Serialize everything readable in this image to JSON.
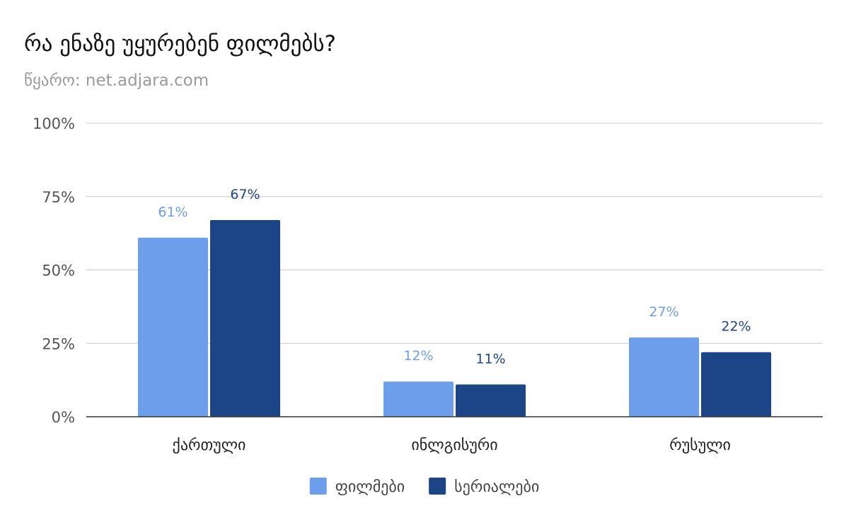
{
  "chart_data": {
    "type": "bar",
    "title": "რა ენაზე უყურებენ ფილმებს?",
    "subtitle": "წყარო: net.adjara.com",
    "categories": [
      "ქართული",
      "ინლგისური",
      "რუსული"
    ],
    "series": [
      {
        "name": "ფილმები",
        "color": "#6d9eeb",
        "values": [
          61,
          12,
          27
        ],
        "labels": [
          "61%",
          "12%",
          "27%"
        ]
      },
      {
        "name": "სერიალები",
        "color": "#1c4587",
        "values": [
          67,
          11,
          22
        ],
        "labels": [
          "67%",
          "11%",
          "22%"
        ]
      }
    ],
    "ylim": [
      0,
      100
    ],
    "yticks": [
      0,
      25,
      50,
      75,
      100
    ],
    "ytick_labels": [
      "0%",
      "25%",
      "50%",
      "75%",
      "100%"
    ],
    "grid": true,
    "legend_position": "bottom"
  }
}
